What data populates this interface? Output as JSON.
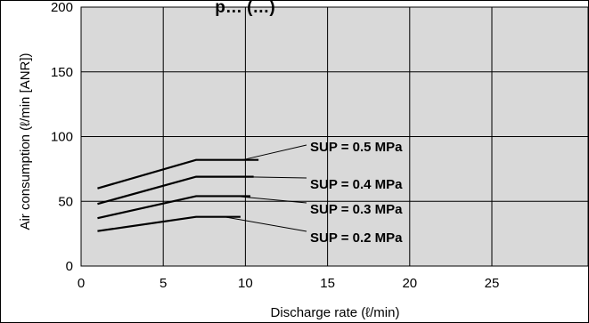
{
  "chart_data": {
    "type": "line",
    "title": "p… (…)",
    "xlabel": "Discharge rate (ℓ/min)",
    "ylabel": "Air consumption (ℓ/min [ANR])",
    "xlim": [
      0,
      25
    ],
    "ylim": [
      0,
      200
    ],
    "x_ticks": [
      "0",
      "5",
      "10",
      "15",
      "20",
      "25"
    ],
    "y_ticks": [
      "0",
      "50",
      "100",
      "150",
      "200"
    ],
    "grid": true,
    "plot_background": "#d9d9d9",
    "series": [
      {
        "name": "SUP = 0.5 MPa",
        "x": [
          1,
          7,
          10.8
        ],
        "y": [
          60,
          82,
          82
        ]
      },
      {
        "name": "SUP = 0.4 MPa",
        "x": [
          1,
          7,
          10.5
        ],
        "y": [
          48,
          69,
          69
        ]
      },
      {
        "name": "SUP = 0.3 MPa",
        "x": [
          1,
          7,
          10.3
        ],
        "y": [
          37,
          54,
          54
        ]
      },
      {
        "name": "SUP = 0.2 MPa",
        "x": [
          1,
          7,
          9.7
        ],
        "y": [
          27,
          38,
          38
        ]
      }
    ]
  }
}
